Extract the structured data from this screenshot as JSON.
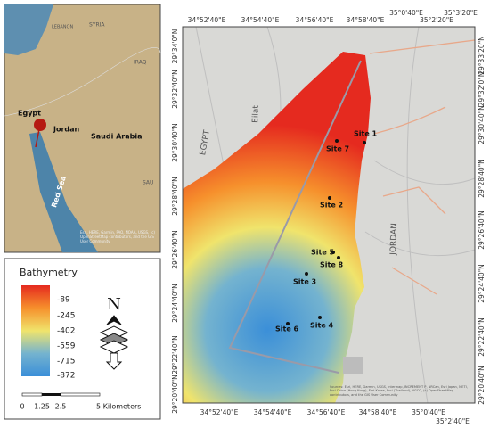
{
  "inset": {
    "labels": {
      "egypt": "Egypt",
      "jordan": "Jordan",
      "saudi": "Saudi Arabia",
      "red_sea": "Red Sea",
      "lebanon": "LEBANON",
      "syria": "SYRIA",
      "iraq": "IRAQ",
      "sau": "SAU"
    },
    "attribution": "Esri, HERE, Garmin, FAO, NOAA, USGS, (c) OpenStreetMap contributors, and the GIS User Community"
  },
  "legend": {
    "title": "Bathymetry",
    "labels": [
      -89,
      -245,
      -402,
      -559,
      -715,
      -872
    ],
    "north": "N",
    "scale": {
      "ticks": [
        "0",
        "1.25",
        "2.5",
        "5 Kilometers"
      ]
    }
  },
  "main": {
    "top_ticks": [
      "34°52'40\"E",
      "34°54'40\"E",
      "34°56'40\"E",
      "34°58'40\"E",
      "35°0'40\"E",
      "35°2'20\"E",
      "35°3'20\"E"
    ],
    "bottom_ticks": [
      "34°52'40\"E",
      "34°54'40\"E",
      "34°56'40\"E",
      "34°58'40\"E",
      "35°0'40\"E",
      "35°2'40\"E"
    ],
    "left_ticks": [
      "29°34'0\"N",
      "29°32'40\"N",
      "29°30'40\"N",
      "29°28'40\"N",
      "29°26'40\"N",
      "29°24'40\"N",
      "29°22'40\"N",
      "29°20'40\"N"
    ],
    "right_ticks": [
      "29°33'20\"N",
      "29°32'0\"N",
      "29°30'40\"N",
      "29°28'40\"N",
      "29°26'40\"N",
      "29°24'40\"N",
      "29°22'40\"N",
      "29°20'40\"N"
    ],
    "places": {
      "egypt": "EGYPT",
      "eilat": "Eilat",
      "jordan": "JORDAN"
    },
    "sites": [
      "Site 1",
      "Site 7",
      "Site 2",
      "Site 5",
      "Site 8",
      "Site 3",
      "Site 6",
      "Site 4"
    ],
    "attribution": "Sources: Esri, HERE, Garmin, USGS, Intermap, INCREMENT P, NRCan, Esri Japan, METI, Esri China (Hong Kong), Esri Korea, Esri (Thailand), NGCC, (c) OpenStreetMap contributors, and the GIS User Community"
  }
}
